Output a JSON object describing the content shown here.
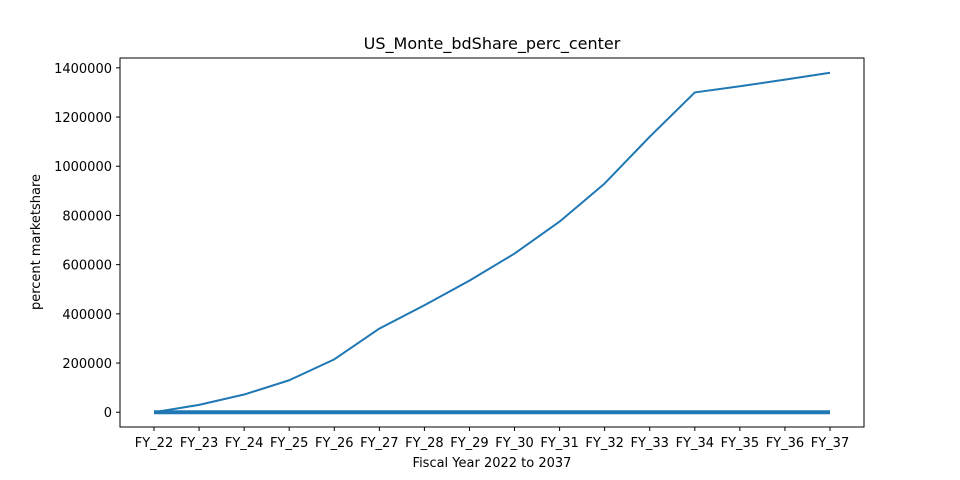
{
  "chart_data": {
    "type": "line",
    "title": "US_Monte_bdShare_perc_center",
    "xlabel": "Fiscal Year 2022 to 2037",
    "ylabel": "percent marketshare",
    "categories": [
      "FY_22",
      "FY_23",
      "FY_24",
      "FY_25",
      "FY_26",
      "FY_27",
      "FY_28",
      "FY_29",
      "FY_30",
      "FY_31",
      "FY_32",
      "FY_33",
      "FY_34",
      "FY_35",
      "FY_36",
      "FY_37"
    ],
    "y_ticks": [
      0,
      200000,
      400000,
      600000,
      800000,
      1000000,
      1200000,
      1400000
    ],
    "ylim": [
      -60000,
      1440000
    ],
    "grid": false,
    "line_color": "#1f77b4",
    "series": [
      {
        "values": [
          0,
          30000,
          72000,
          130000,
          215000,
          340000,
          435000,
          535000,
          645000,
          775000,
          930000,
          1120000,
          1300000,
          1325000,
          1352000,
          1380000
        ]
      },
      {
        "values": [
          0,
          0,
          0,
          0,
          0,
          0,
          0,
          0,
          0,
          0,
          0,
          0,
          0,
          0,
          0,
          0
        ]
      }
    ]
  }
}
